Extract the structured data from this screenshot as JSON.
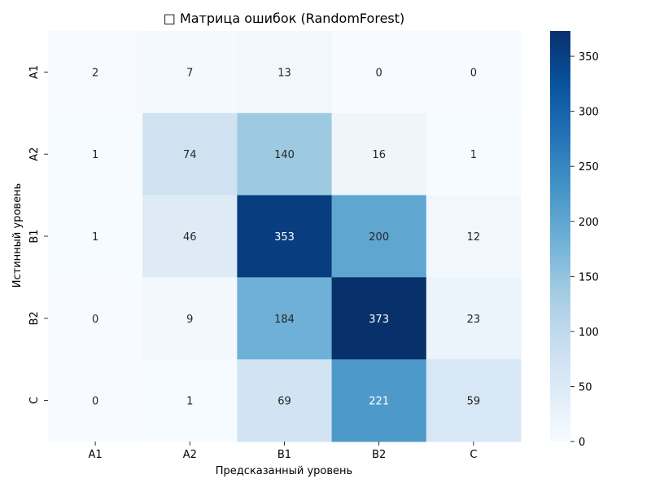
{
  "chart_data": {
    "type": "heatmap",
    "title": "□ Матрица ошибок (RandomForest)",
    "xlabel": "Предсказанный уровень",
    "ylabel": "Истинный уровень",
    "x_categories": [
      "A1",
      "A2",
      "B1",
      "B2",
      "C"
    ],
    "y_categories": [
      "A1",
      "A2",
      "B1",
      "B2",
      "C"
    ],
    "values": [
      [
        2,
        7,
        13,
        0,
        0
      ],
      [
        1,
        74,
        140,
        16,
        1
      ],
      [
        1,
        46,
        353,
        200,
        12
      ],
      [
        0,
        9,
        184,
        373,
        23
      ],
      [
        0,
        1,
        69,
        221,
        59
      ]
    ],
    "colormap": "Blues",
    "colorbar": {
      "min": 0,
      "max": 373,
      "ticks": [
        0,
        50,
        100,
        150,
        200,
        250,
        300,
        350
      ]
    },
    "annotate": true,
    "grid": false
  }
}
